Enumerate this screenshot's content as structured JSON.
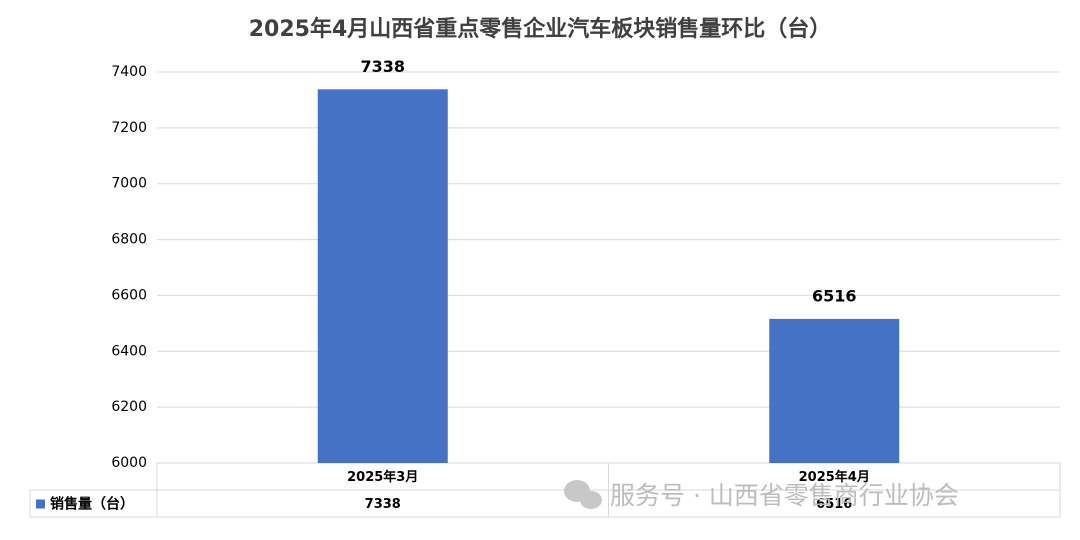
{
  "chart_data": {
    "type": "bar",
    "title": "2025年4月山西省重点零售企业汽车板块销售量环比（台）",
    "categories": [
      "2025年3月",
      "2025年4月"
    ],
    "series": [
      {
        "name": "销售量（台）",
        "color": "#4472c4",
        "values": [
          7338,
          6516
        ]
      }
    ],
    "ylim": [
      6000,
      7400
    ],
    "yticks": [
      6000,
      6200,
      6400,
      6600,
      6800,
      7000,
      7200,
      7400
    ],
    "grid": true,
    "watermark": "服务号 · 山西省零售商行业协会"
  }
}
